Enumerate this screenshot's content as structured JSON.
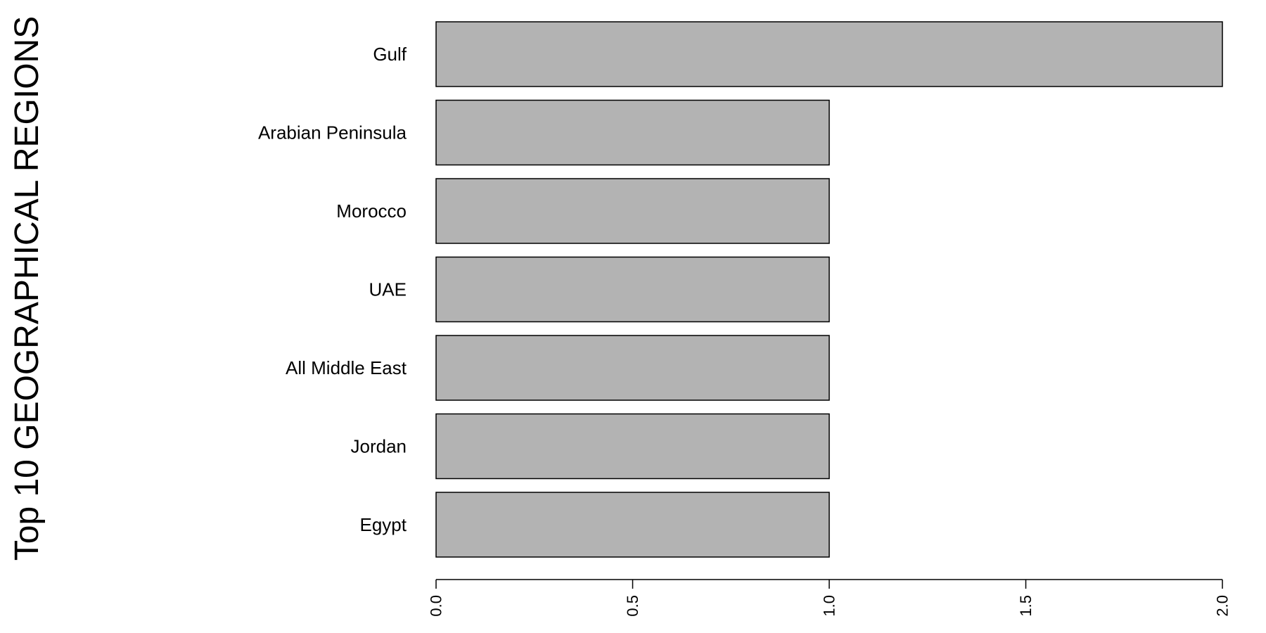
{
  "chart_data": {
    "type": "bar",
    "orientation": "horizontal",
    "categories": [
      "Gulf",
      "Arabian Peninsula",
      "Morocco",
      "UAE",
      "All Middle East",
      "Jordan",
      "Egypt"
    ],
    "values": [
      2,
      1,
      1,
      1,
      1,
      1,
      1
    ],
    "title": "",
    "xlabel": "",
    "ylabel": "Top 10 GEOGRAPHICAL REGIONS",
    "xlim": [
      0,
      2
    ],
    "x_ticks": [
      "0.0",
      "0.5",
      "1.0",
      "1.5",
      "2.0"
    ],
    "grid": false,
    "colors": {
      "bar_fill": "#b3b3b3",
      "bar_stroke": "#000000",
      "axis": "#000000",
      "background": "#ffffff"
    }
  }
}
